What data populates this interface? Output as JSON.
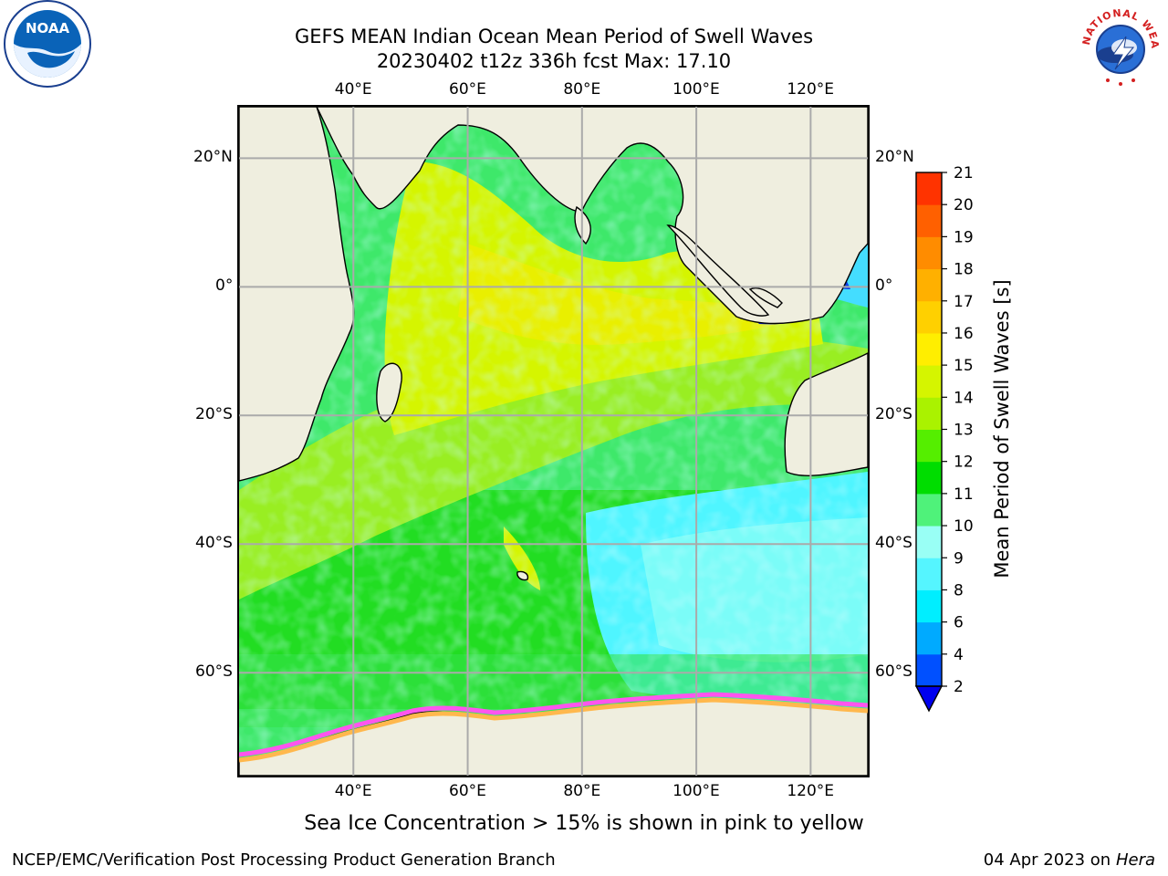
{
  "title": {
    "line1": "GEFS MEAN Indian Ocean Mean Period of Swell Waves",
    "line2": "20230402 t12z 336h fcst   Max: 17.10"
  },
  "map": {
    "lon_range": [
      20,
      130
    ],
    "lat_range": [
      -76,
      28
    ],
    "lon_ticks": [
      "40°E",
      "60°E",
      "80°E",
      "100°E",
      "120°E"
    ],
    "lon_tick_values": [
      40,
      60,
      80,
      100,
      120
    ],
    "lat_ticks": [
      "20°N",
      "0°",
      "20°S",
      "40°S",
      "60°S"
    ],
    "lat_tick_values": [
      20,
      0,
      -20,
      -40,
      -60
    ]
  },
  "colorbar": {
    "label": "Mean Period of Swell Waves [s]",
    "levels": [
      "2",
      "4",
      "6",
      "8",
      "9",
      "10",
      "11",
      "12",
      "13",
      "14",
      "15",
      "16",
      "17",
      "18",
      "19",
      "20",
      "21"
    ],
    "colors": [
      "#0050ff",
      "#00aaff",
      "#00eeff",
      "#55f5ff",
      "#99fff5",
      "#4ff27a",
      "#00dd00",
      "#55ee00",
      "#aaf200",
      "#d5f500",
      "#ffee00",
      "#ffd000",
      "#ffb000",
      "#ff8c00",
      "#ff6000",
      "#ff3300",
      "#ff0000"
    ],
    "under_color": "#0000ee"
  },
  "note": "Sea Ice Concentration > 15% is shown in pink to yellow",
  "footer": {
    "credit": "NCEP/EMC/Verification Post Processing Product Generation Branch",
    "date": "04 Apr 2023 on",
    "machine": "Hera"
  },
  "logos": {
    "noaa": "NOAA",
    "nws": "NATIONAL WEATHER SERVICE"
  }
}
